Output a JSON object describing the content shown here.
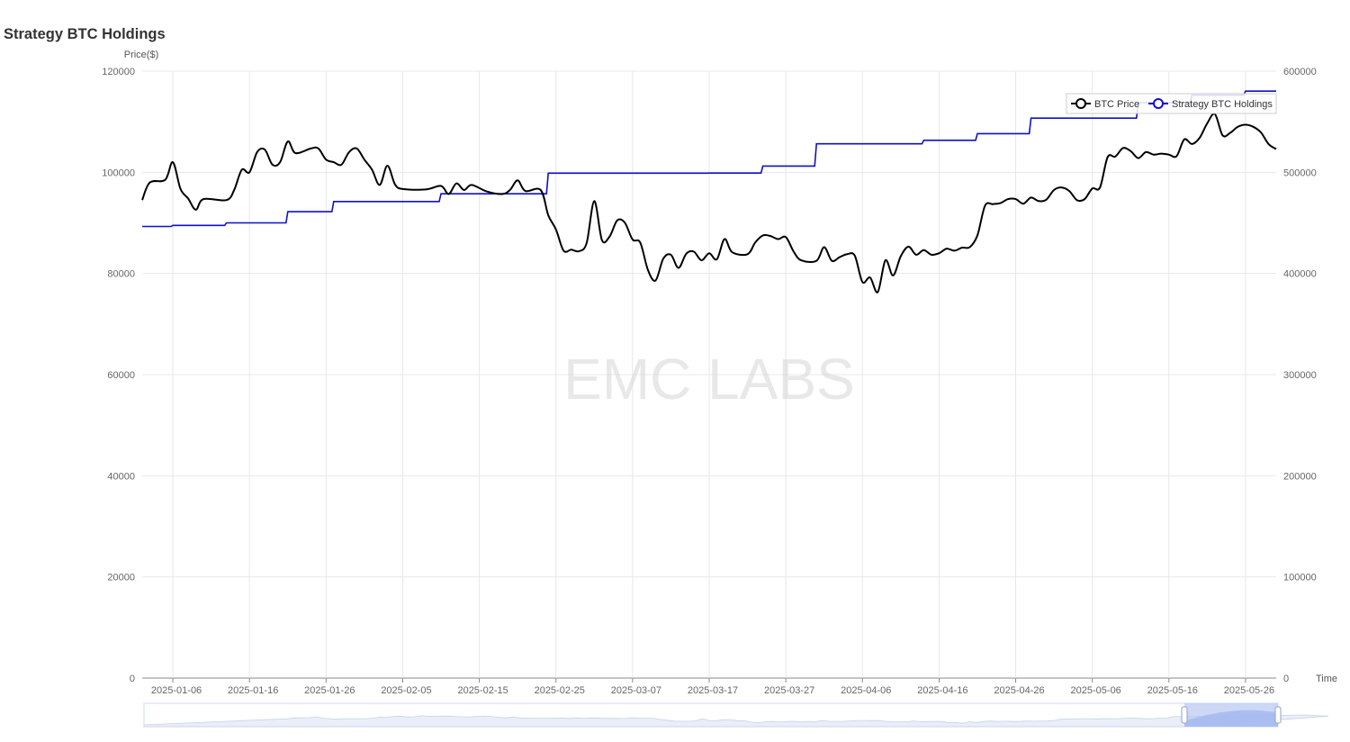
{
  "page": {
    "title": "Strategy BTC Holdings"
  },
  "watermark": "EMC LABS",
  "colors": {
    "price": "#000000",
    "holdings": "#1010c8",
    "grid": "#e8e8e8",
    "axis": "#666666"
  },
  "chart_data": {
    "type": "line",
    "title": "Strategy BTC Holdings",
    "xlabel": "Time",
    "x_type": "date",
    "x_range": [
      "2025-01-02",
      "2025-05-30"
    ],
    "x_ticks": [
      "2025-01-06",
      "2025-01-16",
      "2025-01-26",
      "2025-02-05",
      "2025-02-15",
      "2025-02-25",
      "2025-03-07",
      "2025-03-17",
      "2025-03-27",
      "2025-04-06",
      "2025-04-16",
      "2025-04-26",
      "2025-05-06",
      "2025-05-16",
      "2025-05-26"
    ],
    "y_left": {
      "label": "Price($)",
      "min": 0,
      "max": 120000,
      "ticks": [
        "0",
        "20000",
        "40000",
        "60000",
        "80000",
        "100000",
        "120000"
      ]
    },
    "y_right": {
      "label": "",
      "min": 0,
      "max": 600000,
      "ticks": [
        "0",
        "100000",
        "200000",
        "300000",
        "400000",
        "500000",
        "600000"
      ]
    },
    "grid": true,
    "legend": {
      "position": "top-right",
      "items": [
        "BTC Price",
        "Strategy BTC Holdings"
      ]
    },
    "series": [
      {
        "name": "BTC Price",
        "axis": "left",
        "smooth": true,
        "points": [
          [
            "2025-01-02",
            94500
          ],
          [
            "2025-01-03",
            98000
          ],
          [
            "2025-01-05",
            98500
          ],
          [
            "2025-01-06",
            102000
          ],
          [
            "2025-01-07",
            96700
          ],
          [
            "2025-01-08",
            94800
          ],
          [
            "2025-01-09",
            92600
          ],
          [
            "2025-01-10",
            94700
          ],
          [
            "2025-01-13",
            94500
          ],
          [
            "2025-01-14",
            96500
          ],
          [
            "2025-01-15",
            100500
          ],
          [
            "2025-01-16",
            100000
          ],
          [
            "2025-01-17",
            104000
          ],
          [
            "2025-01-18",
            104500
          ],
          [
            "2025-01-19",
            101500
          ],
          [
            "2025-01-20",
            102000
          ],
          [
            "2025-01-21",
            106100
          ],
          [
            "2025-01-22",
            103800
          ],
          [
            "2025-01-24",
            104700
          ],
          [
            "2025-01-25",
            104700
          ],
          [
            "2025-01-26",
            102500
          ],
          [
            "2025-01-27",
            102000
          ],
          [
            "2025-01-28",
            101500
          ],
          [
            "2025-01-29",
            104000
          ],
          [
            "2025-01-30",
            104700
          ],
          [
            "2025-01-31",
            102500
          ],
          [
            "2025-02-01",
            100500
          ],
          [
            "2025-02-02",
            97500
          ],
          [
            "2025-02-03",
            101300
          ],
          [
            "2025-02-04",
            97600
          ],
          [
            "2025-02-05",
            96700
          ],
          [
            "2025-02-08",
            96600
          ],
          [
            "2025-02-10",
            97300
          ],
          [
            "2025-02-11",
            95700
          ],
          [
            "2025-02-12",
            97800
          ],
          [
            "2025-02-13",
            96500
          ],
          [
            "2025-02-14",
            97500
          ],
          [
            "2025-02-16",
            96200
          ],
          [
            "2025-02-18",
            95700
          ],
          [
            "2025-02-19",
            96500
          ],
          [
            "2025-02-20",
            98400
          ],
          [
            "2025-02-21",
            96300
          ],
          [
            "2025-02-23",
            96500
          ],
          [
            "2025-02-24",
            91500
          ],
          [
            "2025-02-25",
            88700
          ],
          [
            "2025-02-26",
            84500
          ],
          [
            "2025-02-27",
            84700
          ],
          [
            "2025-02-28",
            84400
          ],
          [
            "2025-03-01",
            86000
          ],
          [
            "2025-03-02",
            94300
          ],
          [
            "2025-03-03",
            86600
          ],
          [
            "2025-03-04",
            87300
          ],
          [
            "2025-03-05",
            90500
          ],
          [
            "2025-03-06",
            90000
          ],
          [
            "2025-03-07",
            86700
          ],
          [
            "2025-03-08",
            86100
          ],
          [
            "2025-03-09",
            80700
          ],
          [
            "2025-03-10",
            78600
          ],
          [
            "2025-03-11",
            82900
          ],
          [
            "2025-03-12",
            83700
          ],
          [
            "2025-03-13",
            81100
          ],
          [
            "2025-03-14",
            83900
          ],
          [
            "2025-03-15",
            84300
          ],
          [
            "2025-03-16",
            82600
          ],
          [
            "2025-03-17",
            84000
          ],
          [
            "2025-03-18",
            82800
          ],
          [
            "2025-03-19",
            86800
          ],
          [
            "2025-03-20",
            84200
          ],
          [
            "2025-03-22",
            83800
          ],
          [
            "2025-03-23",
            86100
          ],
          [
            "2025-03-24",
            87500
          ],
          [
            "2025-03-25",
            87400
          ],
          [
            "2025-03-26",
            86800
          ],
          [
            "2025-03-27",
            87200
          ],
          [
            "2025-03-28",
            84400
          ],
          [
            "2025-03-29",
            82600
          ],
          [
            "2025-03-31",
            82500
          ],
          [
            "2025-04-01",
            85200
          ],
          [
            "2025-04-02",
            82500
          ],
          [
            "2025-04-03",
            83200
          ],
          [
            "2025-04-04",
            83800
          ],
          [
            "2025-04-05",
            83500
          ],
          [
            "2025-04-06",
            78300
          ],
          [
            "2025-04-07",
            79200
          ],
          [
            "2025-04-08",
            76300
          ],
          [
            "2025-04-09",
            82600
          ],
          [
            "2025-04-10",
            79600
          ],
          [
            "2025-04-11",
            83400
          ],
          [
            "2025-04-12",
            85300
          ],
          [
            "2025-04-13",
            83700
          ],
          [
            "2025-04-14",
            84600
          ],
          [
            "2025-04-15",
            83700
          ],
          [
            "2025-04-16",
            84000
          ],
          [
            "2025-04-17",
            84900
          ],
          [
            "2025-04-18",
            84500
          ],
          [
            "2025-04-19",
            85100
          ],
          [
            "2025-04-20",
            85200
          ],
          [
            "2025-04-21",
            87500
          ],
          [
            "2025-04-22",
            93400
          ],
          [
            "2025-04-23",
            93700
          ],
          [
            "2025-04-24",
            93900
          ],
          [
            "2025-04-25",
            94700
          ],
          [
            "2025-04-26",
            94700
          ],
          [
            "2025-04-27",
            93800
          ],
          [
            "2025-04-28",
            95000
          ],
          [
            "2025-04-29",
            94300
          ],
          [
            "2025-04-30",
            94600
          ],
          [
            "2025-05-01",
            96500
          ],
          [
            "2025-05-02",
            97000
          ],
          [
            "2025-05-03",
            96300
          ],
          [
            "2025-05-04",
            94500
          ],
          [
            "2025-05-05",
            94700
          ],
          [
            "2025-05-06",
            96800
          ],
          [
            "2025-05-07",
            97000
          ],
          [
            "2025-05-08",
            103000
          ],
          [
            "2025-05-09",
            103100
          ],
          [
            "2025-05-10",
            104800
          ],
          [
            "2025-05-11",
            104200
          ],
          [
            "2025-05-12",
            102800
          ],
          [
            "2025-05-13",
            104000
          ],
          [
            "2025-05-14",
            103500
          ],
          [
            "2025-05-15",
            103700
          ],
          [
            "2025-05-16",
            103500
          ],
          [
            "2025-05-17",
            103200
          ],
          [
            "2025-05-18",
            106500
          ],
          [
            "2025-05-19",
            105600
          ],
          [
            "2025-05-20",
            106800
          ],
          [
            "2025-05-21",
            109700
          ],
          [
            "2025-05-22",
            111500
          ],
          [
            "2025-05-23",
            107300
          ],
          [
            "2025-05-24",
            107800
          ],
          [
            "2025-05-25",
            109000
          ],
          [
            "2025-05-26",
            109400
          ],
          [
            "2025-05-27",
            109000
          ],
          [
            "2025-05-28",
            107900
          ],
          [
            "2025-05-29",
            105600
          ],
          [
            "2025-05-30",
            104600
          ]
        ]
      },
      {
        "name": "Strategy BTC Holdings",
        "axis": "right",
        "step": true,
        "points": [
          [
            "2025-01-02",
            446400
          ],
          [
            "2025-01-06",
            447470
          ],
          [
            "2025-01-13",
            450000
          ],
          [
            "2025-01-21",
            461000
          ],
          [
            "2025-01-27",
            471107
          ],
          [
            "2025-02-10",
            478740
          ],
          [
            "2025-02-24",
            499096
          ],
          [
            "2025-03-17",
            499226
          ],
          [
            "2025-03-24",
            506137
          ],
          [
            "2025-03-31",
            528185
          ],
          [
            "2025-04-14",
            531644
          ],
          [
            "2025-04-21",
            538200
          ],
          [
            "2025-04-28",
            553555
          ],
          [
            "2025-05-12",
            568840
          ],
          [
            "2025-05-19",
            576230
          ],
          [
            "2025-05-26",
            580250
          ]
        ]
      }
    ]
  }
}
